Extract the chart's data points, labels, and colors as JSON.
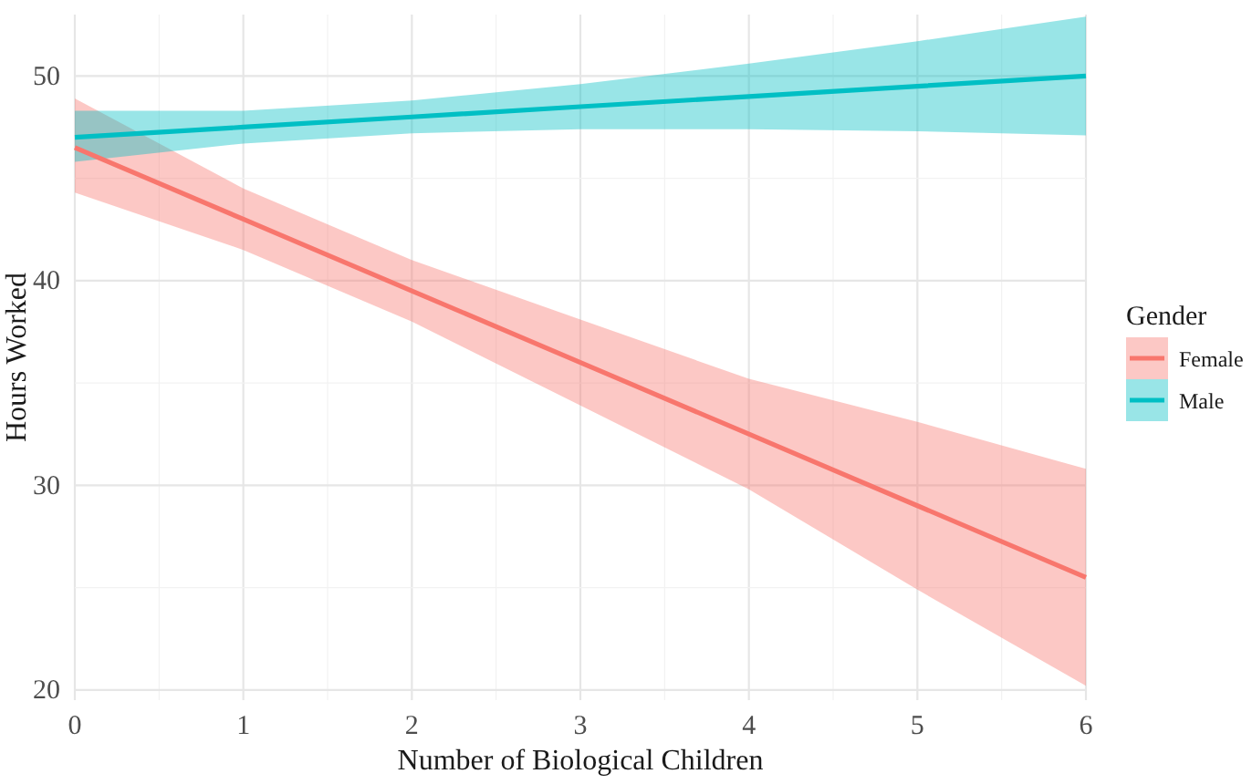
{
  "chart_data": {
    "type": "line",
    "xlabel": "Number of Biological Children",
    "ylabel": "Hours Worked",
    "legend_title": "Gender",
    "legend": "right",
    "x": [
      0,
      1,
      2,
      3,
      4,
      5,
      6
    ],
    "series": [
      {
        "name": "Female",
        "color": "#f8766d",
        "values": [
          46.5,
          43.0,
          39.5,
          36.0,
          32.5,
          29.0,
          25.5
        ],
        "lower": [
          44.3,
          41.5,
          38.0,
          33.9,
          29.8,
          24.9,
          20.2
        ],
        "upper": [
          48.9,
          44.5,
          41.0,
          38.1,
          35.2,
          33.1,
          30.8
        ]
      },
      {
        "name": "Male",
        "color": "#00bfc4",
        "values": [
          47.0,
          47.5,
          48.0,
          48.5,
          49.0,
          49.5,
          50.0
        ],
        "lower": [
          45.8,
          46.7,
          47.2,
          47.4,
          47.4,
          47.3,
          47.1
        ],
        "upper": [
          48.3,
          48.3,
          48.8,
          49.6,
          50.6,
          51.7,
          52.9
        ]
      }
    ],
    "xlim": [
      0,
      6
    ],
    "xticks": [
      0,
      1,
      2,
      3,
      4,
      5,
      6
    ],
    "ylim": [
      19.5,
      53
    ],
    "yticks": [
      20,
      30,
      40,
      50
    ],
    "grid": true
  }
}
